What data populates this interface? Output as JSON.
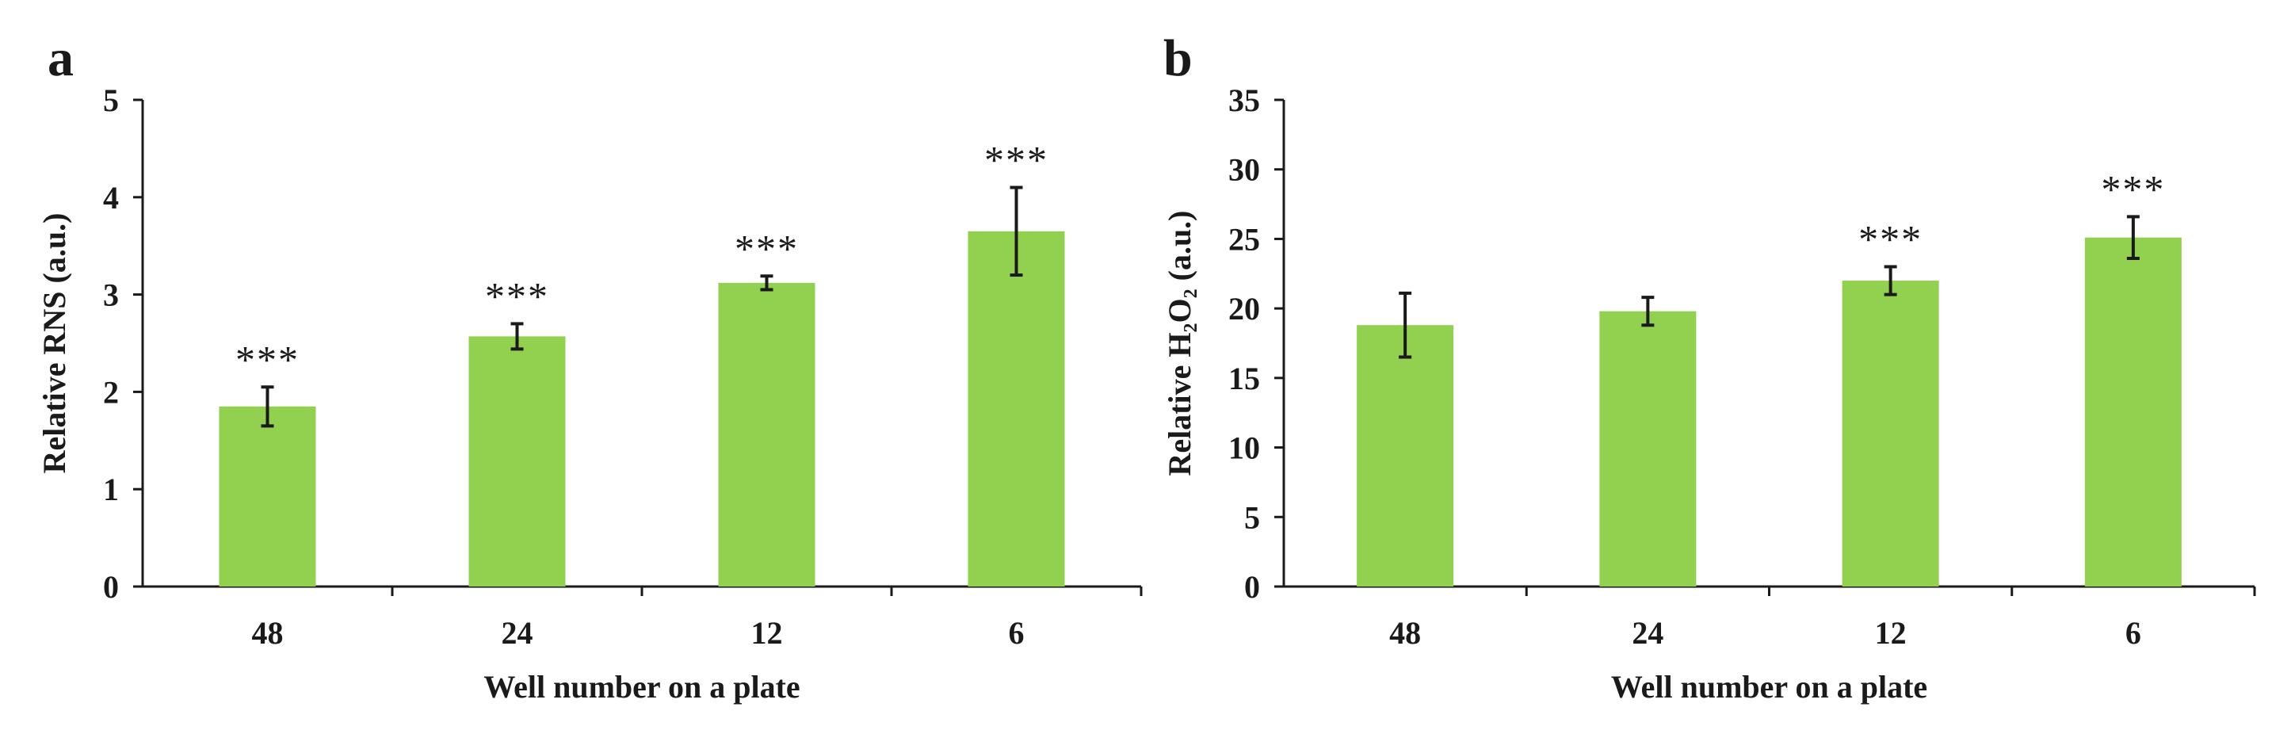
{
  "chart_data": [
    {
      "type": "bar",
      "panel_label": "a",
      "categories": [
        "48",
        "24",
        "12",
        "6"
      ],
      "values": [
        1.85,
        2.57,
        3.12,
        3.65
      ],
      "errors": [
        0.2,
        0.13,
        0.07,
        0.45
      ],
      "significance": [
        "***",
        "***",
        "***",
        "***"
      ],
      "xlabel": "Well number on a plate",
      "ylabel": "Relative RNS (a.u.)",
      "ylim": [
        0,
        5
      ],
      "yticks": [
        0,
        1,
        2,
        3,
        4,
        5
      ],
      "grid": false,
      "bar_color": "#92d050"
    },
    {
      "type": "bar",
      "panel_label": "b",
      "categories": [
        "48",
        "24",
        "12",
        "6"
      ],
      "values": [
        18.8,
        19.8,
        22.0,
        25.1
      ],
      "errors": [
        2.3,
        1.0,
        1.0,
        1.5
      ],
      "significance": [
        "",
        "",
        "***",
        "***"
      ],
      "xlabel": "Well number on a plate",
      "ylabel": "Relative H₂O₂ (a.u.)",
      "ylim": [
        0,
        35
      ],
      "yticks": [
        0,
        5,
        10,
        15,
        20,
        25,
        30,
        35
      ],
      "grid": false,
      "bar_color": "#92d050"
    }
  ]
}
